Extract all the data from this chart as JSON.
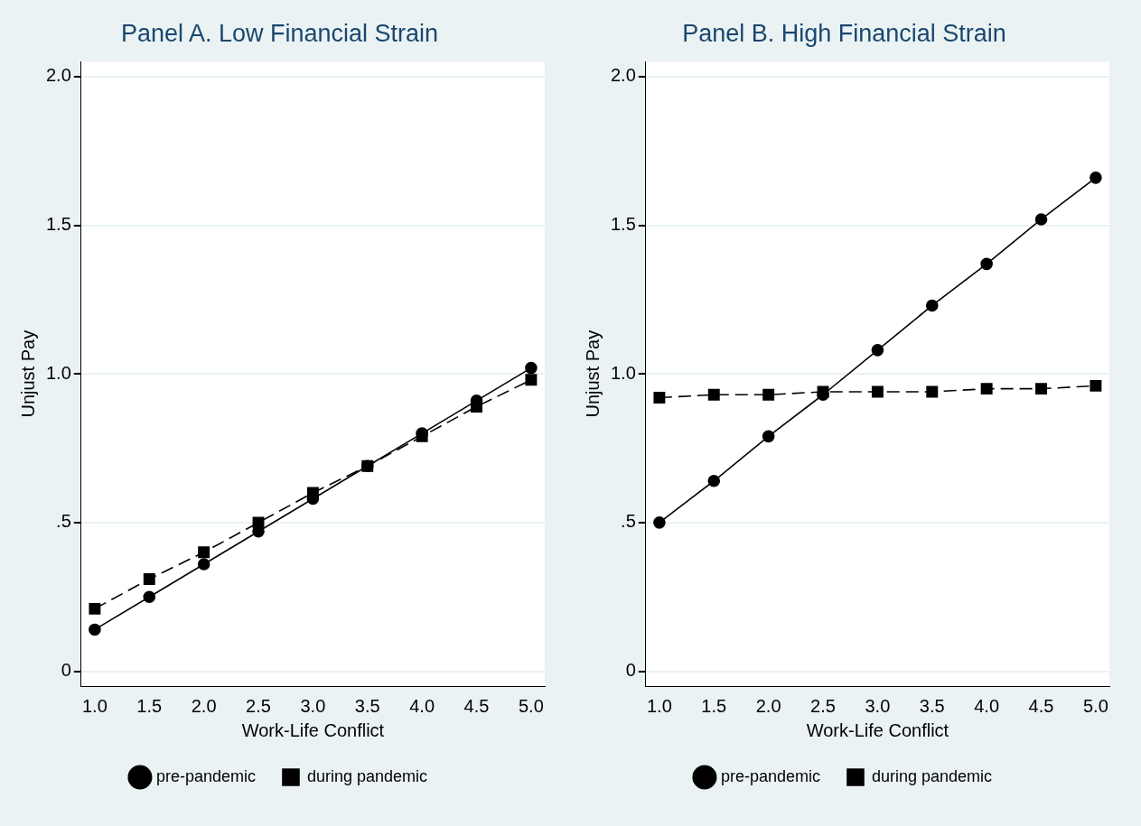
{
  "chart_data": [
    {
      "type": "line",
      "title": "Panel A. Low Financial Strain",
      "xlabel": "Work-Life Conflict",
      "ylabel": "Unjust Pay",
      "x": [
        1.0,
        1.5,
        2.0,
        2.5,
        3.0,
        3.5,
        4.0,
        4.5,
        5.0
      ],
      "series": [
        {
          "name": "pre-pandemic",
          "color": "#000000",
          "marker": "circle",
          "line_style": "solid",
          "values": [
            0.14,
            0.25,
            0.36,
            0.47,
            0.58,
            0.69,
            0.8,
            0.91,
            1.02
          ]
        },
        {
          "name": "during pandemic",
          "color": "#000000",
          "marker": "square",
          "line_style": "dashed",
          "values": [
            0.21,
            0.31,
            0.4,
            0.5,
            0.6,
            0.69,
            0.79,
            0.89,
            0.98
          ]
        }
      ],
      "xlim": [
        0.875,
        5.125
      ],
      "xticks": [
        {
          "value": 1,
          "label": "1.0"
        },
        {
          "value": 1.5,
          "label": "1.5"
        },
        {
          "value": 2,
          "label": "2.0"
        },
        {
          "value": 2.5,
          "label": "2.5"
        },
        {
          "value": 3,
          "label": "3.0"
        },
        {
          "value": 3.5,
          "label": "3.5"
        },
        {
          "value": 4,
          "label": "4.0"
        },
        {
          "value": 4.5,
          "label": "4.5"
        },
        {
          "value": 5,
          "label": "5.0"
        }
      ],
      "ylim": [
        -0.05,
        2.05
      ],
      "yticks": [
        0,
        {
          "value": 0.5,
          "label": ".5"
        },
        {
          "value": 1,
          "label": "1.0"
        },
        {
          "value": 1.5,
          "label": "1.5"
        },
        {
          "value": 2,
          "label": "2.0"
        }
      ],
      "grid": "y",
      "legend": "bottom"
    },
    {
      "type": "line",
      "title": "Panel B. High Financial Strain",
      "xlabel": "Work-Life Conflict",
      "ylabel": "Unjust Pay",
      "x": [
        1.0,
        1.5,
        2.0,
        2.5,
        3.0,
        3.5,
        4.0,
        4.5,
        5.0
      ],
      "series": [
        {
          "name": "pre-pandemic",
          "color": "#000000",
          "marker": "circle",
          "line_style": "solid",
          "values": [
            0.5,
            0.64,
            0.79,
            0.93,
            1.08,
            1.23,
            1.37,
            1.52,
            1.66
          ]
        },
        {
          "name": "during pandemic",
          "color": "#000000",
          "marker": "square",
          "line_style": "dashed",
          "values": [
            0.92,
            0.93,
            0.93,
            0.94,
            0.94,
            0.94,
            0.95,
            0.95,
            0.96
          ]
        }
      ],
      "xlim": [
        0.875,
        5.125
      ],
      "xticks": [
        {
          "value": 1,
          "label": "1.0"
        },
        {
          "value": 1.5,
          "label": "1.5"
        },
        {
          "value": 2,
          "label": "2.0"
        },
        {
          "value": 2.5,
          "label": "2.5"
        },
        {
          "value": 3,
          "label": "3.0"
        },
        {
          "value": 3.5,
          "label": "3.5"
        },
        {
          "value": 4,
          "label": "4.0"
        },
        {
          "value": 4.5,
          "label": "4.5"
        },
        {
          "value": 5,
          "label": "5.0"
        }
      ],
      "ylim": [
        -0.05,
        2.05
      ],
      "yticks": [
        0,
        {
          "value": 0.5,
          "label": ".5"
        },
        {
          "value": 1,
          "label": "1.0"
        },
        {
          "value": 1.5,
          "label": "1.5"
        },
        {
          "value": 2,
          "label": "2.0"
        }
      ],
      "grid": "y",
      "legend": "bottom"
    }
  ]
}
